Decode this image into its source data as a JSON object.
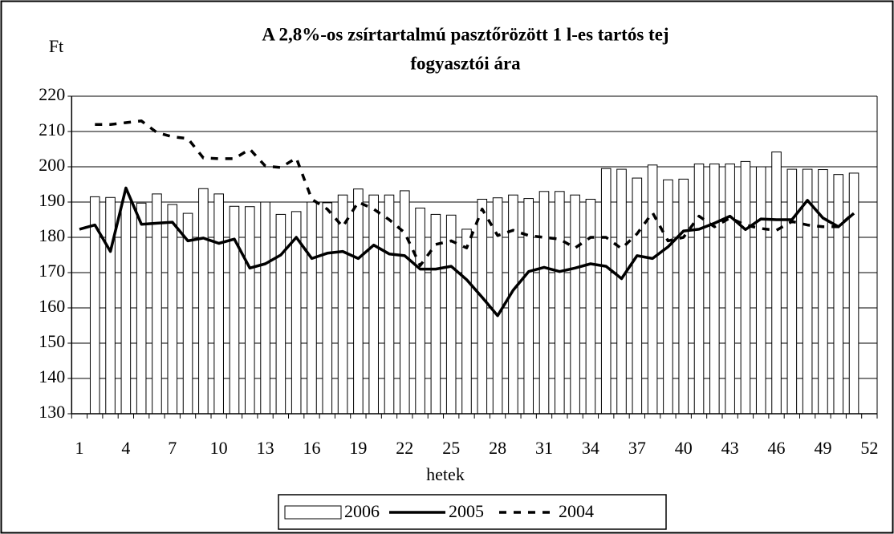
{
  "chart_data": {
    "type": "bar-line",
    "title": [
      "A 2,8%-os zsírtartalmú pasztőrözött 1 l-es tartós tej",
      "fogyasztói ára"
    ],
    "y_label": "Ft",
    "x_label": "hetek",
    "categories": [
      1,
      null,
      null,
      4,
      null,
      null,
      7,
      null,
      null,
      10,
      null,
      null,
      13,
      null,
      null,
      16,
      null,
      null,
      19,
      null,
      null,
      22,
      null,
      null,
      25,
      null,
      null,
      28,
      null,
      null,
      31,
      null,
      null,
      34,
      null,
      null,
      37,
      null,
      null,
      40,
      null,
      null,
      43,
      null,
      null,
      46,
      null,
      null,
      49,
      null,
      null,
      52
    ],
    "ylim": [
      130,
      220
    ],
    "yticks": [
      130,
      140,
      150,
      160,
      170,
      180,
      190,
      200,
      210,
      220
    ],
    "grid": true,
    "series": [
      {
        "name": "2006",
        "kind": "bar",
        "color": "#ffffff",
        "values": [
          null,
          191.5,
          191.3,
          190,
          189.7,
          192.3,
          189.3,
          186.8,
          193.8,
          192.3,
          188.8,
          188.7,
          190,
          186.5,
          187.3,
          190,
          189.8,
          192,
          193.7,
          192,
          192,
          193.2,
          188.3,
          186.5,
          186.3,
          182.3,
          190.8,
          191.2,
          192,
          191,
          193,
          193,
          192,
          190.8,
          199.5,
          199.3,
          196.8,
          200.5,
          196.3,
          196.5,
          200.8,
          200.8,
          200.8,
          201.5,
          200,
          204.2,
          199.3,
          199.3,
          199.2,
          197.8,
          198.2,
          null
        ]
      },
      {
        "name": "2005",
        "kind": "line",
        "color": "#000000",
        "dashed": false,
        "values": [
          182.3,
          183.5,
          176,
          194,
          183.7,
          184,
          184.3,
          179,
          179.8,
          178.3,
          179.5,
          171.3,
          172.5,
          175,
          180,
          174,
          175.5,
          176,
          174,
          177.8,
          175.3,
          174.8,
          171,
          171,
          171.8,
          168,
          163,
          157.8,
          165,
          170.3,
          171.5,
          170.3,
          171.3,
          172.5,
          171.8,
          168.3,
          174.8,
          174,
          177.3,
          181.8,
          182.3,
          184,
          186,
          182.2,
          185.2,
          185,
          185,
          190.5,
          185.5,
          183,
          186.8,
          null
        ]
      },
      {
        "name": "2004",
        "kind": "line",
        "color": "#000000",
        "dashed": true,
        "values": [
          null,
          212,
          212,
          212.5,
          213,
          209.7,
          208.5,
          208,
          202.5,
          202.3,
          202.3,
          205,
          200.2,
          199.8,
          202.5,
          190.8,
          188,
          183,
          190,
          188,
          185,
          181.3,
          172,
          178,
          179,
          177,
          188,
          180.5,
          182,
          180.5,
          180,
          179.5,
          177,
          180,
          180,
          176.8,
          181,
          187,
          179,
          180,
          186,
          183,
          185.5,
          183.5,
          182.5,
          182,
          184.5,
          183.5,
          183,
          183,
          187,
          null
        ]
      }
    ]
  }
}
